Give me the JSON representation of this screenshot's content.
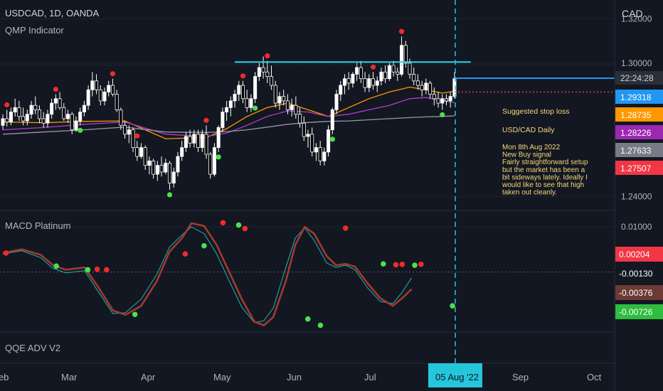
{
  "header": {
    "symbol_line": "USDCAD, 1D, OANDA",
    "indicator_1": "QMP Indicator",
    "currency": "CAD"
  },
  "panes": {
    "macd_title": "MACD Platinum",
    "qqe_title": "QQE ADV V2"
  },
  "time_axis": {
    "labels": [
      "Feb",
      "Mar",
      "Apr",
      "May",
      "Jun",
      "Jul",
      "Sep",
      "Oct"
    ],
    "cursor_label": "05 Aug '22"
  },
  "price_axis": {
    "ticks": [
      "1.32000",
      "1.30000",
      "1.24000"
    ],
    "countdown": "22:24:28",
    "badges": [
      {
        "value": "1.29318",
        "color": "#2196f3"
      },
      {
        "value": "1.28735",
        "color": "#ff9800"
      },
      {
        "value": "1.28226",
        "color": "#9c27b0"
      },
      {
        "value": "1.27633",
        "color": "#787b86"
      },
      {
        "value": "1.27507",
        "color": "#f23645"
      }
    ]
  },
  "macd_axis": {
    "ticks": [
      "0.01000"
    ],
    "badges": [
      {
        "value": "0.00204",
        "color": "#f23645"
      },
      {
        "value": "-0.00130",
        "color": "#131722"
      },
      {
        "value": "-0.00376",
        "color": "#6d3a35"
      },
      {
        "value": "-0.00726",
        "color": "#2ebd3e"
      }
    ]
  },
  "annotations": {
    "stop_loss": "Suggested stop loss",
    "note_title": "USD/CAD Daily",
    "note_lines": [
      "Mon 8th Aug 2022",
      "New Buy signal",
      "Fairly straightforward setup",
      "but the market has been a",
      "bit sideways lately. Ideally I",
      "would like to see that high",
      "taken out cleanly."
    ]
  },
  "colors": {
    "background": "#131722",
    "up_candle": "#ffffff",
    "down_candle": "#000000",
    "ma_orange": "#ff9800",
    "ma_purple": "#b33bc9",
    "ma_gray": "#9598a1",
    "resistance": "#26d5e0",
    "buy_dot": "#4ce04c",
    "sell_dot": "#f02b2b",
    "macd_line": "#a23a2f",
    "signal_line": "#1e9e9e"
  },
  "chart_data": {
    "type": "candlestick",
    "symbol": "USDCAD",
    "timeframe": "1D",
    "yrange": [
      1.235,
      1.322
    ],
    "resistance": 1.3005,
    "current_price": 1.2932,
    "stop_loss_level": 1.287,
    "candles": [
      [
        1.272,
        1.277,
        1.27,
        1.275
      ],
      [
        1.275,
        1.279,
        1.2715,
        1.2735
      ],
      [
        1.2735,
        1.28,
        1.272,
        1.278
      ],
      [
        1.278,
        1.284,
        1.276,
        1.28
      ],
      [
        1.28,
        1.283,
        1.274,
        1.276
      ],
      [
        1.276,
        1.28,
        1.272,
        1.274
      ],
      [
        1.274,
        1.279,
        1.272,
        1.277
      ],
      [
        1.277,
        1.283,
        1.275,
        1.281
      ],
      [
        1.281,
        1.285,
        1.277,
        1.279
      ],
      [
        1.279,
        1.281,
        1.273,
        1.275
      ],
      [
        1.275,
        1.278,
        1.271,
        1.273
      ],
      [
        1.273,
        1.279,
        1.271,
        1.277
      ],
      [
        1.277,
        1.284,
        1.275,
        1.282
      ],
      [
        1.282,
        1.286,
        1.279,
        1.284
      ],
      [
        1.284,
        1.287,
        1.279,
        1.28
      ],
      [
        1.28,
        1.282,
        1.274,
        1.275
      ],
      [
        1.275,
        1.279,
        1.273,
        1.277
      ],
      [
        1.277,
        1.278,
        1.268,
        1.27
      ],
      [
        1.27,
        1.276,
        1.269,
        1.274
      ],
      [
        1.274,
        1.28,
        1.272,
        1.278
      ],
      [
        1.278,
        1.283,
        1.276,
        1.281
      ],
      [
        1.281,
        1.29,
        1.279,
        1.288
      ],
      [
        1.288,
        1.296,
        1.285,
        1.292
      ],
      [
        1.292,
        1.295,
        1.286,
        1.288
      ],
      [
        1.288,
        1.29,
        1.281,
        1.283
      ],
      [
        1.283,
        1.289,
        1.281,
        1.287
      ],
      [
        1.287,
        1.292,
        1.285,
        1.29
      ],
      [
        1.29,
        1.293,
        1.285,
        1.286
      ],
      [
        1.286,
        1.288,
        1.278,
        1.279
      ],
      [
        1.279,
        1.28,
        1.27,
        1.272
      ],
      [
        1.272,
        1.274,
        1.266,
        1.268
      ],
      [
        1.268,
        1.272,
        1.264,
        1.27
      ],
      [
        1.27,
        1.271,
        1.26,
        1.262
      ],
      [
        1.262,
        1.265,
        1.256,
        1.258
      ],
      [
        1.258,
        1.264,
        1.257,
        1.262
      ],
      [
        1.262,
        1.263,
        1.252,
        1.254
      ],
      [
        1.254,
        1.258,
        1.25,
        1.256
      ],
      [
        1.256,
        1.257,
        1.248,
        1.25
      ],
      [
        1.25,
        1.256,
        1.247,
        1.254
      ],
      [
        1.254,
        1.258,
        1.249,
        1.251
      ],
      [
        1.251,
        1.257,
        1.25,
        1.255
      ],
      [
        1.255,
        1.256,
        1.243,
        1.246
      ],
      [
        1.246,
        1.253,
        1.244,
        1.251
      ],
      [
        1.251,
        1.26,
        1.249,
        1.258
      ],
      [
        1.258,
        1.265,
        1.256,
        1.262
      ],
      [
        1.262,
        1.269,
        1.26,
        1.267
      ],
      [
        1.267,
        1.27,
        1.262,
        1.264
      ],
      [
        1.264,
        1.27,
        1.262,
        1.268
      ],
      [
        1.268,
        1.27,
        1.26,
        1.262
      ],
      [
        1.262,
        1.27,
        1.26,
        1.268
      ],
      [
        1.268,
        1.272,
        1.257,
        1.259
      ],
      [
        1.259,
        1.26,
        1.248,
        1.25
      ],
      [
        1.25,
        1.264,
        1.249,
        1.262
      ],
      [
        1.262,
        1.272,
        1.26,
        1.271
      ],
      [
        1.271,
        1.28,
        1.269,
        1.278
      ],
      [
        1.278,
        1.283,
        1.274,
        1.28
      ],
      [
        1.28,
        1.285,
        1.276,
        1.283
      ],
      [
        1.283,
        1.288,
        1.28,
        1.286
      ],
      [
        1.286,
        1.292,
        1.283,
        1.29
      ],
      [
        1.29,
        1.292,
        1.282,
        1.284
      ],
      [
        1.284,
        1.288,
        1.278,
        1.28
      ],
      [
        1.28,
        1.286,
        1.278,
        1.284
      ],
      [
        1.284,
        1.296,
        1.282,
        1.294
      ],
      [
        1.294,
        1.3,
        1.292,
        1.298
      ],
      [
        1.298,
        1.303,
        1.293,
        1.296
      ],
      [
        1.296,
        1.301,
        1.291,
        1.294
      ],
      [
        1.294,
        1.299,
        1.288,
        1.29
      ],
      [
        1.29,
        1.292,
        1.28,
        1.282
      ],
      [
        1.282,
        1.287,
        1.279,
        1.285
      ],
      [
        1.285,
        1.288,
        1.281,
        1.283
      ],
      [
        1.283,
        1.286,
        1.277,
        1.279
      ],
      [
        1.279,
        1.284,
        1.276,
        1.281
      ],
      [
        1.281,
        1.285,
        1.275,
        1.277
      ],
      [
        1.277,
        1.28,
        1.271,
        1.273
      ],
      [
        1.273,
        1.276,
        1.265,
        1.267
      ],
      [
        1.267,
        1.27,
        1.262,
        1.268
      ],
      [
        1.268,
        1.271,
        1.258,
        1.26
      ],
      [
        1.26,
        1.264,
        1.256,
        1.262
      ],
      [
        1.262,
        1.265,
        1.254,
        1.256
      ],
      [
        1.256,
        1.262,
        1.254,
        1.26
      ],
      [
        1.26,
        1.272,
        1.258,
        1.27
      ],
      [
        1.27,
        1.28,
        1.268,
        1.279
      ],
      [
        1.279,
        1.288,
        1.277,
        1.286
      ],
      [
        1.286,
        1.292,
        1.283,
        1.29
      ],
      [
        1.29,
        1.295,
        1.286,
        1.293
      ],
      [
        1.293,
        1.296,
        1.288,
        1.291
      ],
      [
        1.291,
        1.296,
        1.289,
        1.295
      ],
      [
        1.295,
        1.3,
        1.292,
        1.298
      ],
      [
        1.298,
        1.301,
        1.291,
        1.293
      ],
      [
        1.293,
        1.296,
        1.287,
        1.289
      ],
      [
        1.289,
        1.295,
        1.287,
        1.293
      ],
      [
        1.293,
        1.296,
        1.288,
        1.29
      ],
      [
        1.29,
        1.294,
        1.287,
        1.292
      ],
      [
        1.292,
        1.298,
        1.29,
        1.296
      ],
      [
        1.296,
        1.299,
        1.291,
        1.293
      ],
      [
        1.293,
        1.3,
        1.292,
        1.299
      ],
      [
        1.299,
        1.301,
        1.294,
        1.296
      ],
      [
        1.296,
        1.298,
        1.292,
        1.295
      ],
      [
        1.295,
        1.312,
        1.294,
        1.308
      ],
      [
        1.308,
        1.31,
        1.298,
        1.3
      ],
      [
        1.3,
        1.302,
        1.293,
        1.295
      ],
      [
        1.295,
        1.298,
        1.29,
        1.292
      ],
      [
        1.292,
        1.295,
        1.288,
        1.29
      ],
      [
        1.29,
        1.292,
        1.285,
        1.288
      ],
      [
        1.288,
        1.293,
        1.286,
        1.291
      ],
      [
        1.291,
        1.292,
        1.284,
        1.286
      ],
      [
        1.286,
        1.289,
        1.281,
        1.284
      ],
      [
        1.284,
        1.287,
        1.28,
        1.282
      ],
      [
        1.282,
        1.286,
        1.279,
        1.284
      ],
      [
        1.284,
        1.286,
        1.281,
        1.283
      ],
      [
        1.283,
        1.287,
        1.28,
        1.285
      ],
      [
        1.285,
        1.296,
        1.284,
        1.293
      ]
    ],
    "moving_averages": {
      "orange": [
        [
          0,
          1.2735
        ],
        [
          10,
          1.2732
        ],
        [
          20,
          1.2738
        ],
        [
          30,
          1.274
        ],
        [
          40,
          1.266
        ],
        [
          50,
          1.2665
        ],
        [
          55,
          1.2705
        ],
        [
          60,
          1.276
        ],
        [
          65,
          1.28
        ],
        [
          70,
          1.282
        ],
        [
          75,
          1.279
        ],
        [
          80,
          1.276
        ],
        [
          85,
          1.28
        ],
        [
          90,
          1.284
        ],
        [
          95,
          1.287
        ],
        [
          100,
          1.2892
        ],
        [
          104,
          1.288
        ],
        [
          108,
          1.2865
        ],
        [
          111,
          1.2874
        ]
      ],
      "purple": [
        [
          0,
          1.27
        ],
        [
          10,
          1.271
        ],
        [
          20,
          1.2725
        ],
        [
          30,
          1.2735
        ],
        [
          40,
          1.268
        ],
        [
          50,
          1.267
        ],
        [
          55,
          1.2685
        ],
        [
          60,
          1.272
        ],
        [
          65,
          1.276
        ],
        [
          70,
          1.2785
        ],
        [
          75,
          1.278
        ],
        [
          80,
          1.276
        ],
        [
          85,
          1.277
        ],
        [
          90,
          1.279
        ],
        [
          95,
          1.281
        ],
        [
          100,
          1.284
        ],
        [
          104,
          1.2845
        ],
        [
          108,
          1.283
        ],
        [
          111,
          1.2823
        ]
      ],
      "gray": [
        [
          0,
          1.268
        ],
        [
          10,
          1.269
        ],
        [
          20,
          1.27
        ],
        [
          30,
          1.2712
        ],
        [
          40,
          1.269
        ],
        [
          50,
          1.2688
        ],
        [
          55,
          1.2692
        ],
        [
          60,
          1.27
        ],
        [
          65,
          1.2712
        ],
        [
          70,
          1.2725
        ],
        [
          75,
          1.2733
        ],
        [
          80,
          1.2738
        ],
        [
          85,
          1.274
        ],
        [
          90,
          1.2745
        ],
        [
          95,
          1.275
        ],
        [
          100,
          1.2755
        ],
        [
          104,
          1.2758
        ],
        [
          108,
          1.276
        ],
        [
          111,
          1.2763
        ]
      ]
    },
    "signals": [
      {
        "i": 1,
        "type": "sell"
      },
      {
        "i": 13,
        "type": "sell"
      },
      {
        "i": 19,
        "type": "buy"
      },
      {
        "i": 27,
        "type": "sell"
      },
      {
        "i": 33,
        "type": "sell"
      },
      {
        "i": 41,
        "type": "buy"
      },
      {
        "i": 50,
        "type": "sell"
      },
      {
        "i": 53,
        "type": "buy"
      },
      {
        "i": 59,
        "type": "sell"
      },
      {
        "i": 62,
        "type": "buy"
      },
      {
        "i": 65,
        "type": "sell"
      },
      {
        "i": 81,
        "type": "buy"
      },
      {
        "i": 91,
        "type": "sell"
      },
      {
        "i": 98,
        "type": "sell"
      },
      {
        "i": 108,
        "type": "buy"
      }
    ],
    "macd": {
      "ticks": [
        0.01
      ],
      "range": [
        -0.0125,
        0.013
      ],
      "macd": [
        [
          0,
          0.0042
        ],
        [
          6,
          0.005
        ],
        [
          12,
          0.0038
        ],
        [
          16,
          0.0015
        ],
        [
          20,
          0.0005
        ],
        [
          26,
          0.001
        ],
        [
          30,
          -0.003
        ],
        [
          35,
          -0.0085
        ],
        [
          39,
          -0.0095
        ],
        [
          44,
          -0.0075
        ],
        [
          49,
          -0.002
        ],
        [
          53,
          0.0045
        ],
        [
          57,
          0.0075
        ],
        [
          60,
          0.0108
        ],
        [
          64,
          0.0102
        ],
        [
          68,
          0.006
        ],
        [
          72,
          0.0
        ],
        [
          76,
          -0.006
        ],
        [
          80,
          -0.011
        ],
        [
          83,
          -0.0118
        ],
        [
          86,
          -0.01
        ],
        [
          90,
          -0.002
        ],
        [
          93,
          0.006
        ],
        [
          96,
          0.01
        ],
        [
          99,
          0.0085
        ],
        [
          103,
          0.0035
        ],
        [
          106,
          0.0015
        ],
        [
          109,
          0.0018
        ],
        [
          112,
          0.0012
        ],
        [
          116,
          -0.0025
        ],
        [
          120,
          -0.0058
        ],
        [
          124,
          -0.0075
        ],
        [
          127,
          -0.0058
        ],
        [
          130,
          -0.0038
        ]
      ],
      "signal": [
        [
          0,
          0.004
        ],
        [
          6,
          0.0047
        ],
        [
          12,
          0.0032
        ],
        [
          16,
          0.0008
        ],
        [
          20,
          -0.0002
        ],
        [
          26,
          0.0003
        ],
        [
          30,
          -0.004
        ],
        [
          35,
          -0.0092
        ],
        [
          39,
          -0.009
        ],
        [
          44,
          -0.006
        ],
        [
          49,
          -0.0005
        ],
        [
          53,
          0.0055
        ],
        [
          57,
          0.0082
        ],
        [
          60,
          0.01
        ],
        [
          64,
          0.0085
        ],
        [
          68,
          0.004
        ],
        [
          72,
          -0.002
        ],
        [
          76,
          -0.0078
        ],
        [
          80,
          -0.0112
        ],
        [
          83,
          -0.0108
        ],
        [
          86,
          -0.008
        ],
        [
          90,
          0.001
        ],
        [
          93,
          0.0075
        ],
        [
          96,
          0.0098
        ],
        [
          99,
          0.007
        ],
        [
          103,
          0.002
        ],
        [
          106,
          0.001
        ],
        [
          109,
          0.0015
        ],
        [
          112,
          0.0005
        ],
        [
          116,
          -0.0035
        ],
        [
          120,
          -0.0065
        ],
        [
          124,
          -0.007
        ],
        [
          127,
          -0.0045
        ],
        [
          130,
          -0.0013
        ]
      ],
      "dots": [
        {
          "i": 1,
          "v": 0.0042,
          "t": "sell"
        },
        {
          "i": 17,
          "v": 0.0013,
          "t": "buy"
        },
        {
          "i": 27,
          "v": 0.0005,
          "t": "buy"
        },
        {
          "i": 30,
          "v": 0.0006,
          "t": "sell"
        },
        {
          "i": 33,
          "v": 0.0005,
          "t": "sell"
        },
        {
          "i": 42,
          "v": -0.0094,
          "t": "buy"
        },
        {
          "i": 58,
          "v": 0.004,
          "t": "sell"
        },
        {
          "i": 64,
          "v": 0.0058,
          "t": "buy"
        },
        {
          "i": 70,
          "v": 0.0109,
          "t": "sell"
        },
        {
          "i": 75,
          "v": 0.0104,
          "t": "buy"
        },
        {
          "i": 77,
          "v": 0.0096,
          "t": "sell"
        },
        {
          "i": 97,
          "v": -0.0104,
          "t": "buy"
        },
        {
          "i": 101,
          "v": -0.0118,
          "t": "buy"
        },
        {
          "i": 109,
          "v": 0.0097,
          "t": "sell"
        },
        {
          "i": 121,
          "v": 0.0018,
          "t": "buy"
        },
        {
          "i": 125,
          "v": 0.0016,
          "t": "sell"
        },
        {
          "i": 127,
          "v": 0.0017,
          "t": "sell"
        },
        {
          "i": 131,
          "v": 0.0015,
          "t": "buy"
        },
        {
          "i": 133,
          "v": 0.0017,
          "t": "sell"
        },
        {
          "i": 143,
          "v": -0.0075,
          "t": "buy"
        }
      ]
    }
  }
}
